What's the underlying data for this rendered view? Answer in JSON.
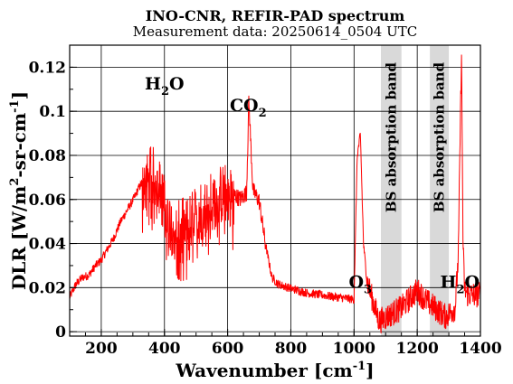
{
  "chart_data": {
    "type": "line",
    "title": "INO-CNR, REFIR-PAD spectrum",
    "subtitle": "Measurement data: 20250614_0504 UTC",
    "xlabel": "Wavenumber [cm",
    "xlabel_sup": "-1",
    "xlabel_end": "]",
    "ylabel": "DLR [W/m",
    "ylabel_sup": "2",
    "ylabel_mid": "-sr-cm",
    "ylabel_sup2": "-1",
    "ylabel_end": "]",
    "xlim": [
      100,
      1400
    ],
    "ylim": [
      -0.002,
      0.13
    ],
    "xticks": [
      200,
      400,
      600,
      800,
      1000,
      1200,
      1400
    ],
    "xtick_labels": [
      "200",
      "400",
      "600",
      "800",
      "1000",
      "1200",
      "1400"
    ],
    "yticks": [
      0,
      0.02,
      0.04,
      0.06,
      0.08,
      0.1,
      0.12
    ],
    "ytick_labels": [
      "0",
      "0.02",
      "0.04",
      "0.06",
      "0.08",
      "0.1",
      "0.12"
    ],
    "grid": true,
    "series_color": "#ff0000",
    "series": [
      {
        "x": [
          100,
          120,
          140,
          160,
          180,
          200,
          220,
          240,
          260,
          280,
          300,
          320,
          340,
          360,
          380,
          400,
          420,
          440,
          460,
          480,
          500,
          520,
          540,
          560,
          580,
          600,
          620,
          640,
          660,
          667,
          680,
          700,
          720,
          740,
          760,
          780,
          800,
          850,
          900,
          950,
          1000,
          1010,
          1020,
          1030,
          1040,
          1050,
          1060,
          1070,
          1080,
          1150,
          1200,
          1230,
          1290,
          1320,
          1330,
          1340,
          1345,
          1350,
          1360,
          1380,
          1400
        ],
        "y": [
          0.016,
          0.022,
          0.025,
          0.026,
          0.03,
          0.033,
          0.038,
          0.043,
          0.05,
          0.055,
          0.06,
          0.066,
          0.07,
          0.074,
          0.07,
          0.06,
          0.052,
          0.048,
          0.05,
          0.052,
          0.055,
          0.058,
          0.06,
          0.063,
          0.065,
          0.066,
          0.063,
          0.061,
          0.064,
          0.106,
          0.065,
          0.06,
          0.04,
          0.025,
          0.022,
          0.021,
          0.02,
          0.018,
          0.017,
          0.016,
          0.015,
          0.08,
          0.09,
          0.04,
          0.025,
          0.02,
          0.015,
          0.01,
          0.006,
          0.012,
          0.02,
          0.015,
          0.008,
          0.012,
          0.035,
          0.13,
          0.04,
          0.02,
          0.018,
          0.018,
          0.018
        ]
      }
    ],
    "shaded_bands": [
      {
        "x0": 1085,
        "x1": 1150,
        "label": "BS absorption band"
      },
      {
        "x0": 1240,
        "x1": 1300,
        "label": "BS absorption band"
      }
    ],
    "band_color": "#d9d9d9",
    "annotations": [
      {
        "main": "H",
        "sub": "2",
        "rest": "O",
        "x": 400,
        "y": 0.11
      },
      {
        "main": "CO",
        "sub": "2",
        "rest": "",
        "x": 665,
        "y": 0.1
      },
      {
        "main": "O",
        "sub": "3",
        "rest": "",
        "x": 1020,
        "y": 0.02
      },
      {
        "main": "H",
        "sub": "2",
        "rest": "O",
        "x": 1335,
        "y": 0.02
      }
    ]
  }
}
